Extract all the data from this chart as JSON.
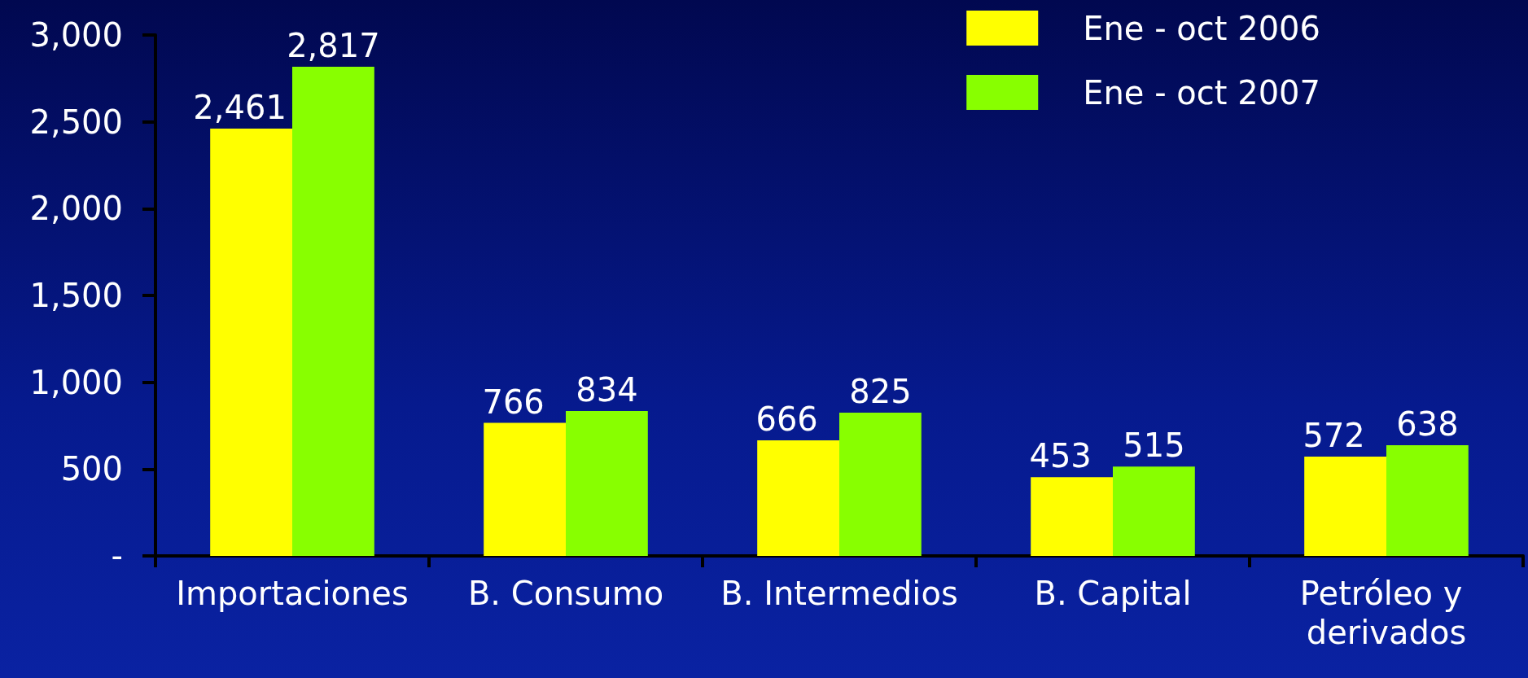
{
  "chart_data": {
    "type": "bar",
    "categories": [
      "Importaciones",
      "B. Consumo",
      "B. Intermedios",
      "B. Capital",
      "Petróleo y derivados"
    ],
    "series": [
      {
        "name": "Ene - oct 2006",
        "color": "#ffff00",
        "values": [
          2461,
          766,
          666,
          453,
          572
        ],
        "value_labels": [
          "2,461",
          "766",
          "666",
          "453",
          "572"
        ]
      },
      {
        "name": "Ene - oct 2007",
        "color": "#88ff00",
        "values": [
          2817,
          834,
          825,
          515,
          638
        ],
        "value_labels": [
          "2,817",
          "834",
          "825",
          "515",
          "638"
        ]
      }
    ],
    "ylim": [
      0,
      3000
    ],
    "yticks": [
      {
        "value": 0,
        "label": "-"
      },
      500,
      {
        "value": 1000,
        "label": "1,000"
      },
      {
        "value": 1500,
        "label": "1,500"
      },
      {
        "value": 2000,
        "label": "2,000"
      },
      {
        "value": 2500,
        "label": "2,500"
      },
      {
        "value": 3000,
        "label": "3,000"
      }
    ],
    "grid": false,
    "legend": "top right"
  }
}
